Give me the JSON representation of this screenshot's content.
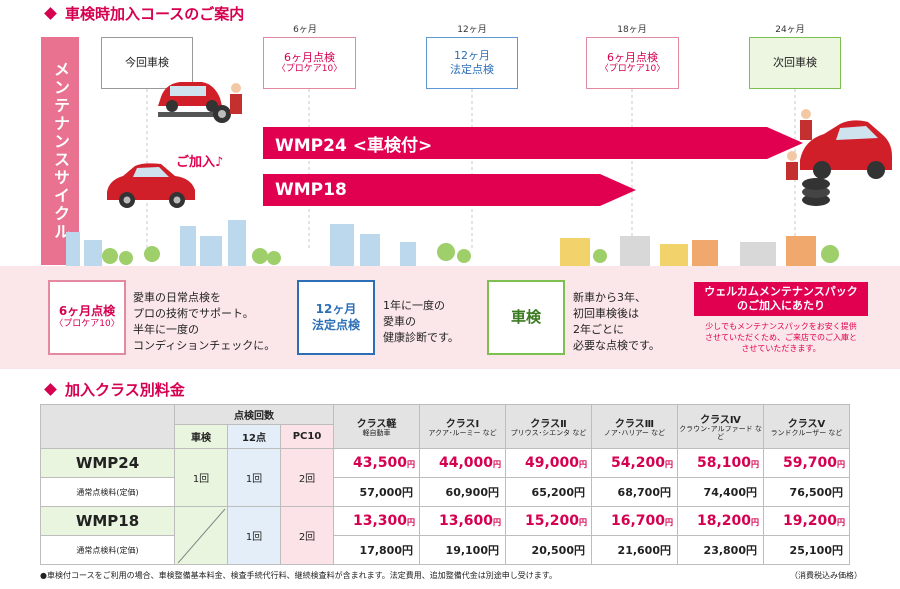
{
  "section1": {
    "title": "車検時加入コースのご案内"
  },
  "vertical_band": "メンテナンスサイクル",
  "months": [
    "6ヶ月",
    "12ヶ月",
    "18ヶ月",
    "24ヶ月"
  ],
  "milestones": {
    "current": "今回車検",
    "m6": {
      "line1": "6ヶ月点検",
      "line2": "〈プロケア10〉"
    },
    "m12": {
      "line1": "12ヶ月",
      "line2": "法定点検"
    },
    "m18": {
      "line1": "6ヶ月点検",
      "line2": "〈プロケア10〉"
    },
    "m24": "次回車検"
  },
  "join_text": "ご加入♪",
  "arrows": {
    "wmp24": "WMP24 <車検付>",
    "wmp18": "WMP18"
  },
  "info": {
    "box1": {
      "line1": "6ヶ月点検",
      "line2": "〈プロケア10〉"
    },
    "text1": [
      "愛車の日常点検を",
      "プロの技術でサポート。",
      "半年に一度の",
      "コンディションチェックに。"
    ],
    "box2": {
      "line1": "12ヶ月",
      "line2": "法定点検"
    },
    "text2": [
      "1年に一度の",
      "愛車の",
      "健康診断です。"
    ],
    "box3": "車検",
    "text3": [
      "新車から3年、",
      "初回車検後は",
      "2年ごとに",
      "必要な点検です。"
    ],
    "welcome_line1": "ウェルカムメンテナンスパック",
    "welcome_line2": "のご加入にあたり",
    "welcome_text": [
      "少しでもメンテナンスパックをお安く提供",
      "させていただくため、ご来店でのご入庫と",
      "させていただきます。"
    ]
  },
  "section2": {
    "title": "加入クラス別料金"
  },
  "table": {
    "inspection_header": "点検回数",
    "sub_headers": [
      "車検",
      "12点",
      "PC10"
    ],
    "classes": [
      {
        "name": "クラス軽",
        "sub": "軽自動車"
      },
      {
        "name": "クラスⅠ",
        "sub": "アクア･ルーミー など"
      },
      {
        "name": "クラスⅡ",
        "sub": "プリウス･シエンタ など"
      },
      {
        "name": "クラスⅢ",
        "sub": "ノア･ハリアー など"
      },
      {
        "name": "クラスⅣ",
        "sub": "クラウン･アルファード など"
      },
      {
        "name": "クラスⅤ",
        "sub": "ランドクルーザー など"
      }
    ],
    "yen": "円",
    "rows": [
      {
        "plan": "WMP24",
        "label": "通常点検料(定価)",
        "counts": [
          "1回",
          "1回",
          "2回"
        ],
        "prices": [
          "43,500",
          "44,000",
          "49,000",
          "54,200",
          "58,100",
          "59,700"
        ],
        "regular": [
          "57,000円",
          "60,900円",
          "65,200円",
          "68,700円",
          "74,400円",
          "76,500円"
        ]
      },
      {
        "plan": "WMP18",
        "label": "通常点検料(定価)",
        "counts": [
          "",
          "1回",
          "2回"
        ],
        "prices": [
          "13,300",
          "13,600",
          "15,200",
          "16,700",
          "18,200",
          "19,200"
        ],
        "regular": [
          "17,800円",
          "19,100円",
          "20,500円",
          "21,600円",
          "23,800円",
          "25,100円"
        ]
      }
    ]
  },
  "footnote": "●車検付コースをご利用の場合、車検整備基本料金、検査手続代行料、継続検査料が含まれます。法定費用、追加整備代金は別途申し受けます。",
  "tax_note": "（消費税込み価格）",
  "colors": {
    "accent": "#e0004f",
    "band": "#e8728f",
    "green": "#7ec050",
    "blue": "#2d6fb7"
  }
}
